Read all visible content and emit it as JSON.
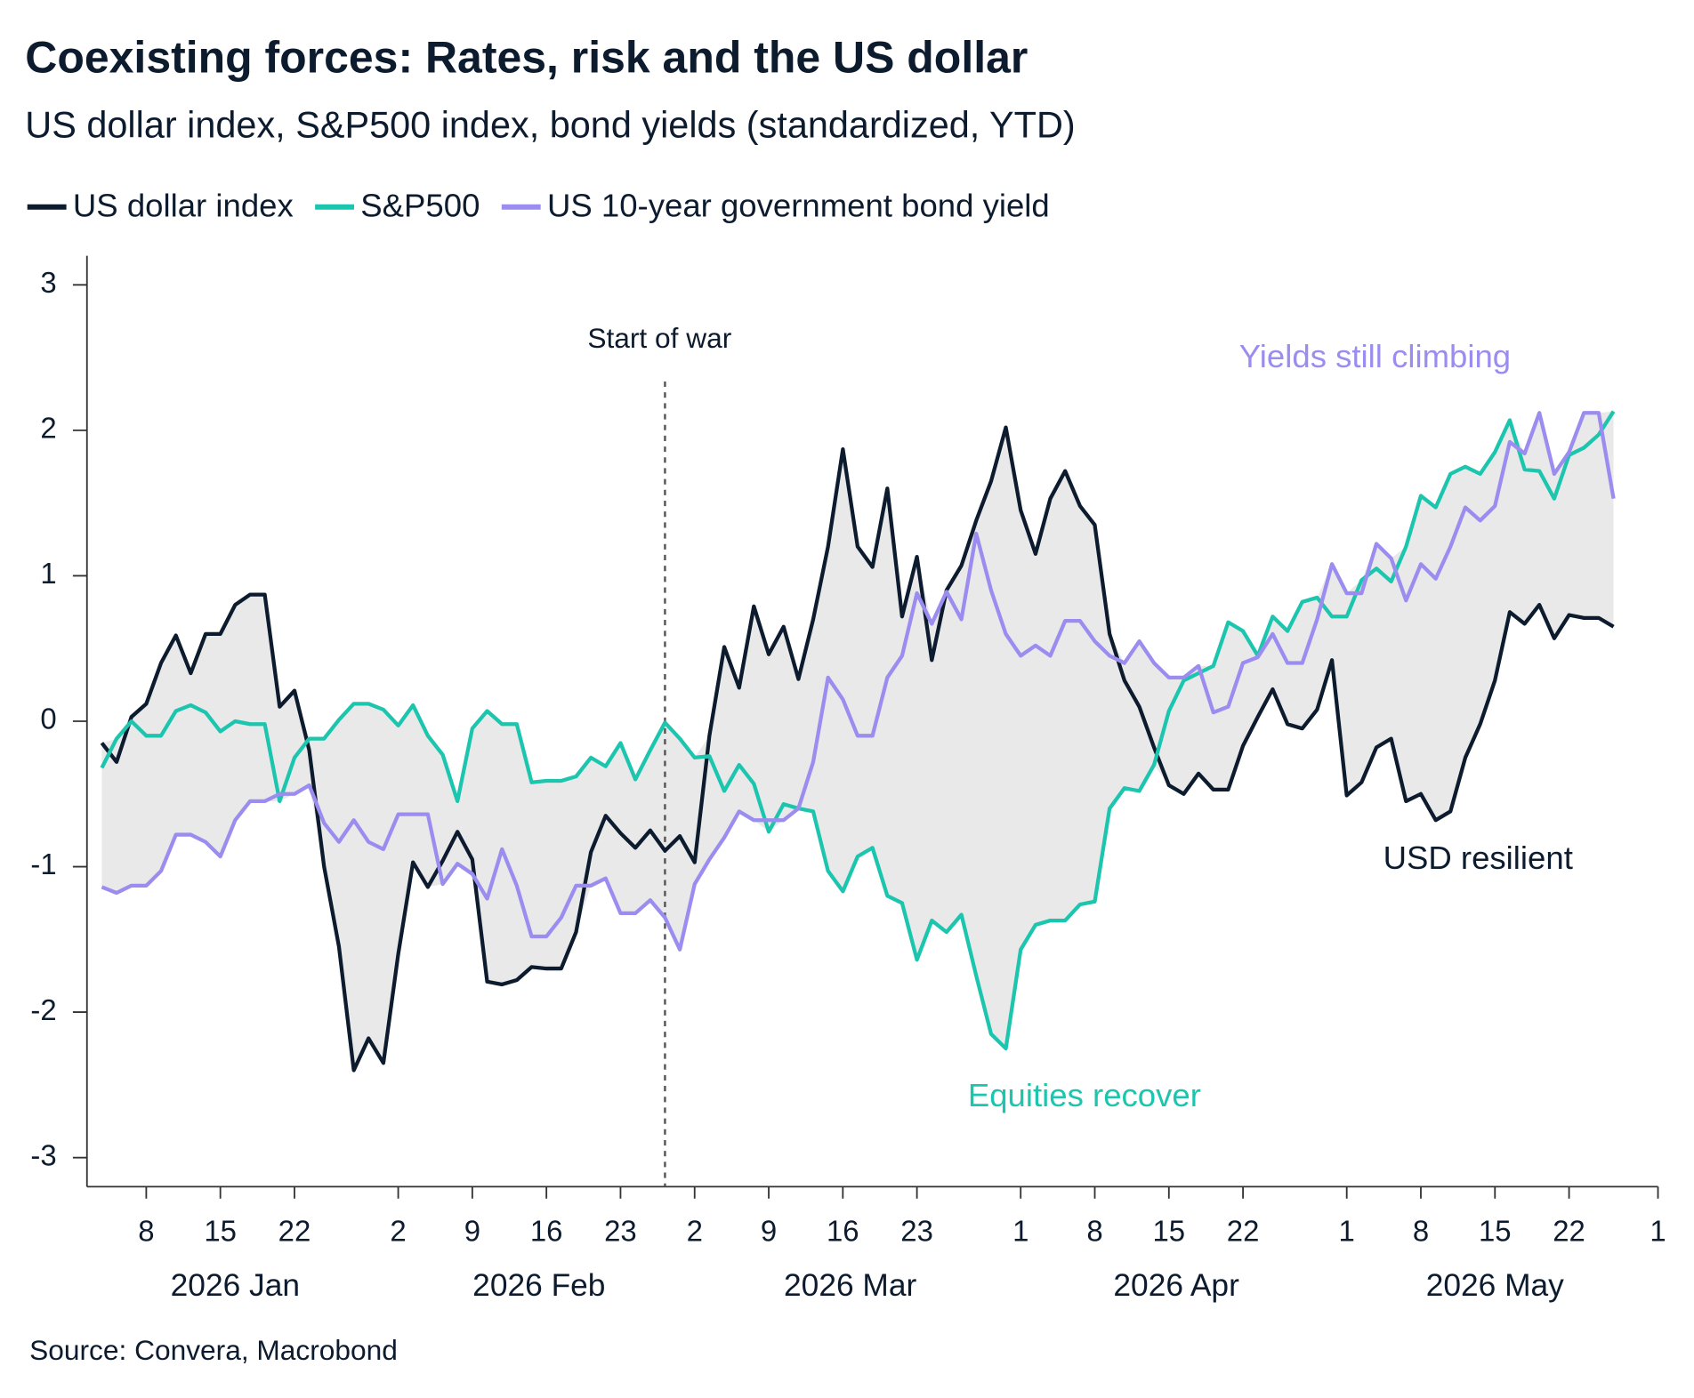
{
  "chart_data": {
    "type": "line",
    "title": "Coexisting forces: Rates, risk and the US dollar",
    "subtitle": "US dollar index, S&P500 index, bond yields (standardized, YTD)",
    "source": "Source: Convera, Macrobond",
    "xscale": "weekdays",
    "shade_range": true,
    "xlim": [
      "2026-01-02",
      "2026-06-01"
    ],
    "ylim": [
      -3.2,
      3.2
    ],
    "yticks": [
      3,
      2,
      1,
      0,
      -1,
      -2,
      -3
    ],
    "xticks": [
      {
        "value": "2026-01-08",
        "label": "8"
      },
      {
        "value": "2026-01-15",
        "label": "15"
      },
      {
        "value": "2026-01-22",
        "label": "22"
      },
      {
        "value": "2026-02-02",
        "label": "2"
      },
      {
        "value": "2026-02-09",
        "label": "9"
      },
      {
        "value": "2026-02-16",
        "label": "16"
      },
      {
        "value": "2026-02-23",
        "label": "23"
      },
      {
        "value": "2026-03-02",
        "label": "2"
      },
      {
        "value": "2026-03-09",
        "label": "9"
      },
      {
        "value": "2026-03-16",
        "label": "16"
      },
      {
        "value": "2026-03-23",
        "label": "23"
      },
      {
        "value": "2026-04-01",
        "label": "1"
      },
      {
        "value": "2026-04-08",
        "label": "8"
      },
      {
        "value": "2026-04-15",
        "label": "15"
      },
      {
        "value": "2026-04-22",
        "label": "22"
      },
      {
        "value": "2026-05-01",
        "label": "1"
      },
      {
        "value": "2026-05-08",
        "label": "8"
      },
      {
        "value": "2026-05-15",
        "label": "15"
      },
      {
        "value": "2026-05-22",
        "label": "22"
      },
      {
        "value": "2026-06-01",
        "label": "1"
      }
    ],
    "xgroups": [
      {
        "label": "2026 Jan",
        "start": "2026-01-01",
        "end": "2026-01-30"
      },
      {
        "label": "2026 Feb",
        "start": "2026-02-02",
        "end": "2026-02-27"
      },
      {
        "label": "2026 Mar",
        "start": "2026-03-02",
        "end": "2026-03-31"
      },
      {
        "label": "2026 Apr",
        "start": "2026-04-01",
        "end": "2026-04-30"
      },
      {
        "label": "2026 May",
        "start": "2026-05-01",
        "end": "2026-05-29"
      }
    ],
    "vline": {
      "x": "2026-02-26",
      "label": "Start of war"
    },
    "annotations": [
      {
        "text": "Yields still climbing",
        "color": "#9b8df0"
      },
      {
        "text": "USD resilient",
        "color": "#0d1b2e"
      },
      {
        "text": "Equities recover",
        "color": "#1cc5ae"
      }
    ],
    "x": [
      "2026-01-05",
      "2026-01-06",
      "2026-01-07",
      "2026-01-08",
      "2026-01-09",
      "2026-01-12",
      "2026-01-13",
      "2026-01-14",
      "2026-01-15",
      "2026-01-16",
      "2026-01-19",
      "2026-01-20",
      "2026-01-21",
      "2026-01-22",
      "2026-01-23",
      "2026-01-26",
      "2026-01-27",
      "2026-01-28",
      "2026-01-29",
      "2026-01-30",
      "2026-02-02",
      "2026-02-03",
      "2026-02-04",
      "2026-02-05",
      "2026-02-06",
      "2026-02-09",
      "2026-02-10",
      "2026-02-11",
      "2026-02-12",
      "2026-02-13",
      "2026-02-16",
      "2026-02-17",
      "2026-02-18",
      "2026-02-19",
      "2026-02-20",
      "2026-02-23",
      "2026-02-24",
      "2026-02-25",
      "2026-02-26",
      "2026-02-27",
      "2026-03-02",
      "2026-03-03",
      "2026-03-04",
      "2026-03-05",
      "2026-03-06",
      "2026-03-09",
      "2026-03-10",
      "2026-03-11",
      "2026-03-12",
      "2026-03-13",
      "2026-03-16",
      "2026-03-17",
      "2026-03-18",
      "2026-03-19",
      "2026-03-20",
      "2026-03-23",
      "2026-03-24",
      "2026-03-25",
      "2026-03-26",
      "2026-03-27",
      "2026-03-30",
      "2026-03-31",
      "2026-04-01",
      "2026-04-02",
      "2026-04-03",
      "2026-04-06",
      "2026-04-07",
      "2026-04-08",
      "2026-04-09",
      "2026-04-10",
      "2026-04-13",
      "2026-04-14",
      "2026-04-15",
      "2026-04-16",
      "2026-04-17",
      "2026-04-20",
      "2026-04-21",
      "2026-04-22",
      "2026-04-23",
      "2026-04-24",
      "2026-04-27",
      "2026-04-28",
      "2026-04-29",
      "2026-04-30",
      "2026-05-01",
      "2026-05-04",
      "2026-05-05",
      "2026-05-06",
      "2026-05-07",
      "2026-05-08",
      "2026-05-11",
      "2026-05-12",
      "2026-05-13",
      "2026-05-14",
      "2026-05-15",
      "2026-05-18",
      "2026-05-19",
      "2026-05-20",
      "2026-05-21",
      "2026-05-22",
      "2026-05-25",
      "2026-05-26",
      "2026-05-27"
    ],
    "series": [
      {
        "name": "US dollar index",
        "color": "#0d1b2e",
        "values": [
          -0.15,
          -0.28,
          0.03,
          0.12,
          0.4,
          0.59,
          0.33,
          0.6,
          0.6,
          0.8,
          0.87,
          0.87,
          0.1,
          0.21,
          -0.2,
          -1.0,
          -1.55,
          -2.4,
          -2.18,
          -2.35,
          -1.6,
          -0.97,
          -1.14,
          -0.96,
          -0.76,
          -0.95,
          -1.79,
          -1.81,
          -1.78,
          -1.69,
          -1.7,
          -1.7,
          -1.45,
          -0.9,
          -0.65,
          -0.77,
          -0.87,
          -0.75,
          -0.89,
          -0.79,
          -0.97,
          -0.1,
          0.51,
          0.23,
          0.79,
          0.46,
          0.65,
          0.29,
          0.7,
          1.2,
          1.87,
          1.2,
          1.06,
          1.6,
          0.72,
          1.13,
          0.42,
          0.9,
          1.07,
          1.38,
          1.65,
          2.02,
          1.45,
          1.15,
          1.53,
          1.72,
          1.48,
          1.35,
          0.6,
          0.28,
          0.1,
          -0.18,
          -0.44,
          -0.5,
          -0.36,
          -0.47,
          -0.47,
          -0.17,
          0.03,
          0.22,
          -0.02,
          -0.05,
          0.08,
          0.42,
          -0.51,
          -0.42,
          -0.18,
          -0.12,
          -0.55,
          -0.5,
          -0.68,
          -0.62,
          -0.25,
          -0.02,
          0.28,
          0.75,
          0.67,
          0.8,
          0.57,
          0.73,
          0.71,
          0.71,
          0.65
        ]
      },
      {
        "name": "S&P500",
        "color": "#1cc5ae",
        "values": [
          -0.32,
          -0.12,
          0.0,
          -0.1,
          -0.1,
          0.07,
          0.11,
          0.06,
          -0.07,
          0.0,
          -0.02,
          -0.02,
          -0.55,
          -0.25,
          -0.12,
          -0.12,
          0.01,
          0.12,
          0.12,
          0.08,
          -0.03,
          0.11,
          -0.1,
          -0.23,
          -0.55,
          -0.05,
          0.07,
          -0.02,
          -0.02,
          -0.42,
          -0.41,
          -0.41,
          -0.38,
          -0.25,
          -0.31,
          -0.15,
          -0.4,
          -0.2,
          -0.01,
          -0.12,
          -0.25,
          -0.24,
          -0.48,
          -0.3,
          -0.43,
          -0.76,
          -0.57,
          -0.6,
          -0.62,
          -1.03,
          -1.17,
          -0.93,
          -0.87,
          -1.2,
          -1.25,
          -1.64,
          -1.37,
          -1.45,
          -1.33,
          -1.75,
          -2.15,
          -2.25,
          -1.57,
          -1.4,
          -1.37,
          -1.37,
          -1.26,
          -1.24,
          -0.6,
          -0.46,
          -0.48,
          -0.3,
          0.07,
          0.28,
          0.33,
          0.38,
          0.68,
          0.62,
          0.45,
          0.72,
          0.62,
          0.82,
          0.85,
          0.72,
          0.72,
          0.97,
          1.05,
          0.96,
          1.2,
          1.55,
          1.47,
          1.7,
          1.75,
          1.7,
          1.85,
          2.07,
          1.73,
          1.72,
          1.53,
          1.83,
          1.88,
          1.97,
          2.13
        ]
      },
      {
        "name": "US 10-year government bond yield",
        "color": "#9b8df0",
        "values": [
          -1.14,
          -1.18,
          -1.13,
          -1.13,
          -1.03,
          -0.78,
          -0.78,
          -0.83,
          -0.93,
          -0.68,
          -0.55,
          -0.55,
          -0.5,
          -0.5,
          -0.44,
          -0.7,
          -0.83,
          -0.68,
          -0.83,
          -0.88,
          -0.64,
          -0.64,
          -0.64,
          -1.12,
          -0.98,
          -1.05,
          -1.22,
          -0.88,
          -1.13,
          -1.48,
          -1.48,
          -1.35,
          -1.13,
          -1.13,
          -1.08,
          -1.32,
          -1.32,
          -1.23,
          -1.35,
          -1.57,
          -1.12,
          -0.95,
          -0.8,
          -0.62,
          -0.68,
          -0.68,
          -0.68,
          -0.6,
          -0.28,
          0.3,
          0.15,
          -0.1,
          -0.1,
          0.3,
          0.45,
          0.88,
          0.67,
          0.89,
          0.7,
          1.29,
          0.9,
          0.6,
          0.45,
          0.52,
          0.45,
          0.69,
          0.69,
          0.55,
          0.45,
          0.4,
          0.55,
          0.4,
          0.3,
          0.3,
          0.38,
          0.06,
          0.1,
          0.4,
          0.44,
          0.6,
          0.4,
          0.4,
          0.7,
          1.08,
          0.88,
          0.88,
          1.22,
          1.12,
          0.83,
          1.08,
          0.98,
          1.2,
          1.47,
          1.38,
          1.48,
          1.92,
          1.84,
          2.12,
          1.7,
          1.85,
          2.12,
          2.12,
          1.53
        ]
      }
    ]
  }
}
